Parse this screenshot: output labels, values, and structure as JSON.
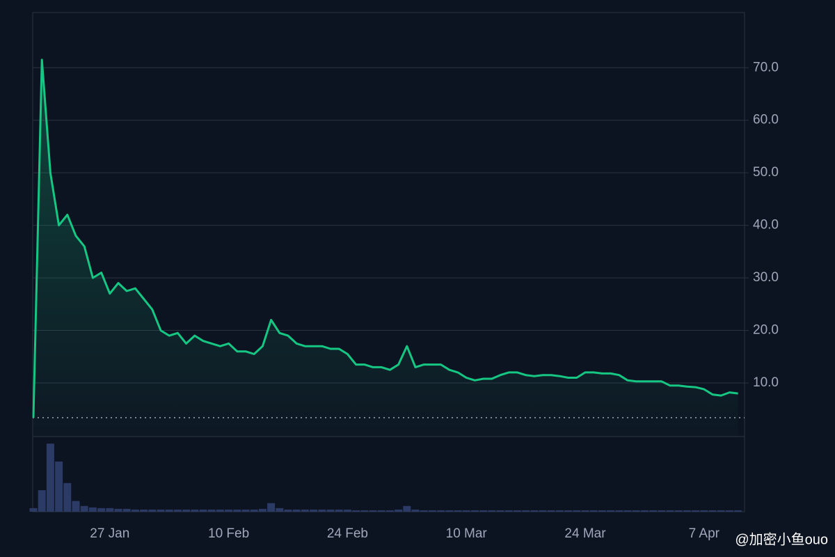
{
  "chart_data": {
    "type": "line",
    "categories": [
      null,
      null,
      null,
      null,
      null,
      null,
      null,
      null,
      null,
      "27 Jan",
      null,
      null,
      null,
      null,
      null,
      null,
      null,
      null,
      null,
      null,
      null,
      null,
      null,
      "10 Feb",
      null,
      null,
      null,
      null,
      null,
      null,
      null,
      null,
      null,
      null,
      null,
      null,
      null,
      "24 Feb",
      null,
      null,
      null,
      null,
      null,
      null,
      null,
      null,
      null,
      null,
      null,
      null,
      null,
      "10 Mar",
      null,
      null,
      null,
      null,
      null,
      null,
      null,
      null,
      null,
      null,
      null,
      null,
      null,
      "24 Mar",
      null,
      null,
      null,
      null,
      null,
      null,
      null,
      null,
      null,
      null,
      null,
      null,
      null,
      "7 Apr",
      null,
      null,
      null,
      null
    ],
    "series": [
      {
        "color": "#16c784",
        "values": [
          3.4,
          71.5,
          50,
          40,
          42,
          38,
          36,
          30,
          31,
          27,
          29,
          27.5,
          28,
          26,
          24,
          20,
          19,
          19.5,
          17.5,
          19,
          18,
          17.5,
          17,
          17.5,
          16,
          16,
          15.5,
          17,
          22,
          19.5,
          19,
          17.5,
          17,
          17,
          17,
          16.5,
          16.5,
          15.5,
          13.5,
          13.5,
          13,
          13,
          12.5,
          13.5,
          17,
          13,
          13.5,
          13.5,
          13.5,
          12.5,
          12,
          11,
          10.5,
          10.8,
          10.8,
          11.5,
          12,
          12,
          11.5,
          11.3,
          11.5,
          11.5,
          11.3,
          11,
          11,
          12,
          12,
          11.8,
          11.8,
          11.5,
          10.5,
          10.3,
          10.3,
          10.3,
          10.3,
          9.5,
          9.5,
          9.3,
          9.2,
          8.8,
          7.8,
          7.6,
          8.2,
          8.0
        ]
      }
    ],
    "volume": {
      "color": "#2c3a66",
      "ylim": [
        0,
        100
      ],
      "values": [
        5,
        30,
        95,
        70,
        40,
        15,
        8,
        6,
        5,
        5,
        4,
        4,
        3,
        3,
        3,
        3,
        3,
        3,
        3,
        3,
        3,
        3,
        3,
        3,
        3,
        3,
        3,
        4,
        12,
        5,
        3,
        3,
        3,
        3,
        3,
        3,
        3,
        3,
        2,
        2,
        2,
        2,
        2,
        3,
        8,
        3,
        2,
        2,
        2,
        2,
        2,
        2,
        2,
        2,
        2,
        2,
        2,
        2,
        2,
        2,
        2,
        2,
        2,
        2,
        2,
        2,
        2,
        2,
        2,
        2,
        2,
        2,
        2,
        2,
        2,
        2,
        2,
        2,
        2,
        2,
        2,
        2,
        2,
        2
      ]
    },
    "ylim": [
      -0.2,
      80.5
    ],
    "yticks": [
      {
        "value": 10,
        "label": "10.0"
      },
      {
        "value": 20,
        "label": "20.0"
      },
      {
        "value": 30,
        "label": "30.0"
      },
      {
        "value": 40,
        "label": "40.0"
      },
      {
        "value": 50,
        "label": "50.0"
      },
      {
        "value": 60,
        "label": "60.0"
      },
      {
        "value": 70,
        "label": "70.0"
      }
    ],
    "baseline": 3.4,
    "grid": true,
    "watermark": "@加密小鱼ouo"
  }
}
